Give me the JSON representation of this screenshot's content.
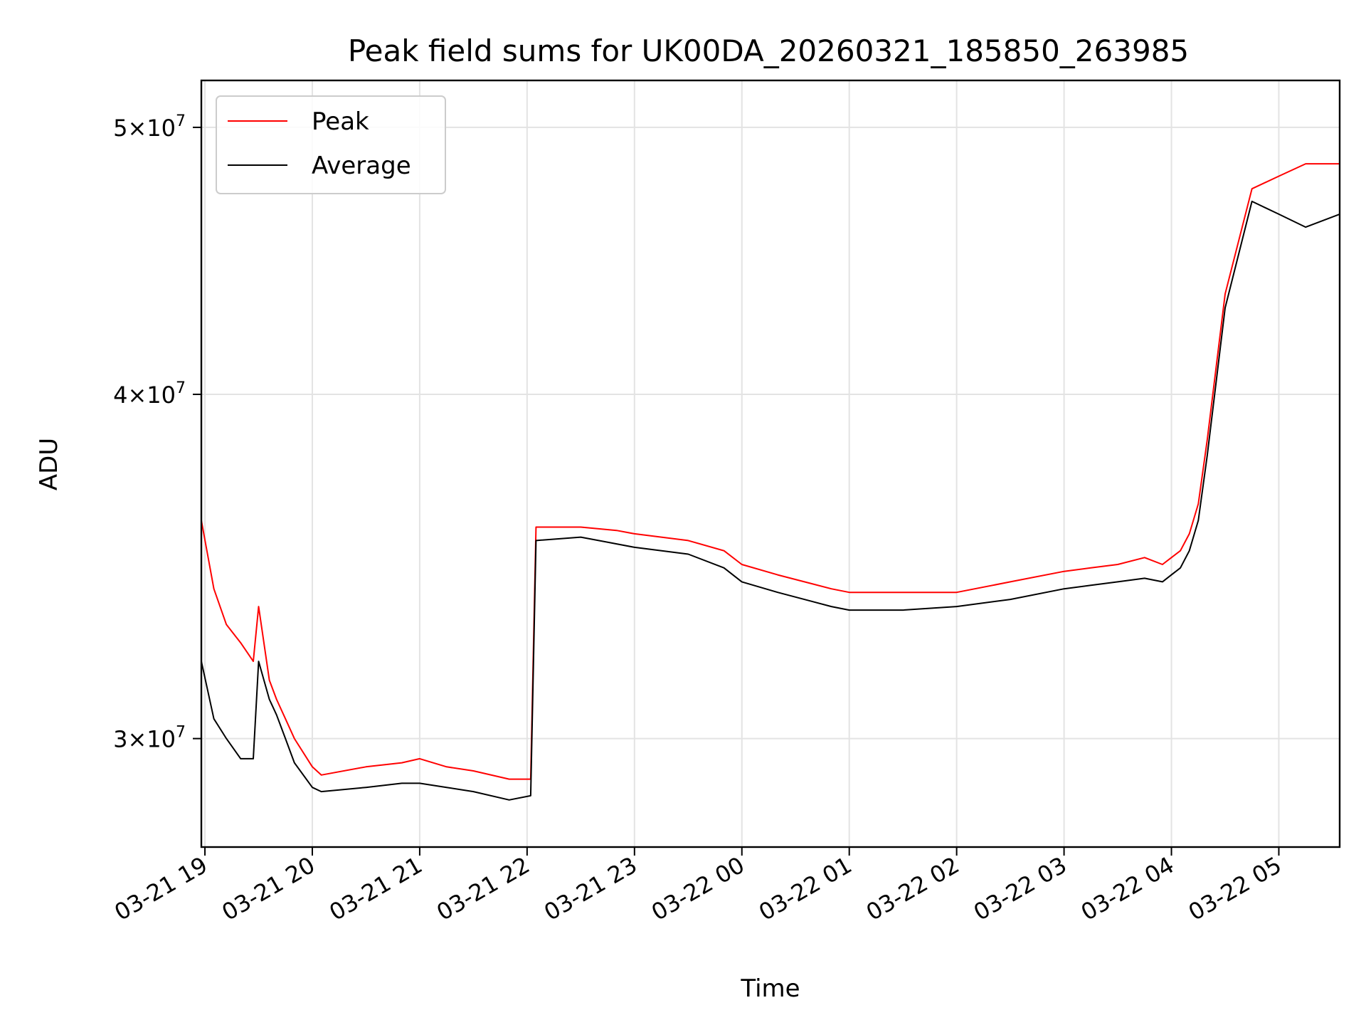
{
  "chart_data": {
    "type": "line",
    "title": "Peak field sums for UK00DA_20260321_185850_263985",
    "xlabel": "Time",
    "ylabel": "ADU",
    "y_scale": "log",
    "ylim": [
      27400000,
      52000000
    ],
    "xlim": [
      "2026-03-21 18:58",
      "2026-03-22 05:34"
    ],
    "x_ticks": [
      {
        "label": "03-21 19",
        "value": "2026-03-21 19:00"
      },
      {
        "label": "03-21 20",
        "value": "2026-03-21 20:00"
      },
      {
        "label": "03-21 21",
        "value": "2026-03-21 21:00"
      },
      {
        "label": "03-21 22",
        "value": "2026-03-21 22:00"
      },
      {
        "label": "03-21 23",
        "value": "2026-03-21 23:00"
      },
      {
        "label": "03-22 00",
        "value": "2026-03-22 00:00"
      },
      {
        "label": "03-22 01",
        "value": "2026-03-22 01:00"
      },
      {
        "label": "03-22 02",
        "value": "2026-03-22 02:00"
      },
      {
        "label": "03-22 03",
        "value": "2026-03-22 03:00"
      },
      {
        "label": "03-22 04",
        "value": "2026-03-22 04:00"
      },
      {
        "label": "03-22 05",
        "value": "2026-03-22 05:00"
      }
    ],
    "y_ticks": [
      {
        "mantissa": "3",
        "exp": "7",
        "value": 30000000
      },
      {
        "mantissa": "4",
        "exp": "7",
        "value": 40000000
      },
      {
        "mantissa": "5",
        "exp": "7",
        "value": 50000000
      }
    ],
    "grid": true,
    "legend_position": "upper-left",
    "series": [
      {
        "name": "Peak",
        "color": "#ff0000",
        "x": [
          "2026-03-21 18:58",
          "2026-03-21 19:05",
          "2026-03-21 19:12",
          "2026-03-21 19:20",
          "2026-03-21 19:27",
          "2026-03-21 19:30",
          "2026-03-21 19:36",
          "2026-03-21 19:40",
          "2026-03-21 19:45",
          "2026-03-21 19:50",
          "2026-03-21 20:00",
          "2026-03-21 20:05",
          "2026-03-21 20:30",
          "2026-03-21 20:50",
          "2026-03-21 21:00",
          "2026-03-21 21:15",
          "2026-03-21 21:30",
          "2026-03-21 21:50",
          "2026-03-21 22:02",
          "2026-03-21 22:05",
          "2026-03-21 22:30",
          "2026-03-21 22:50",
          "2026-03-21 23:00",
          "2026-03-21 23:30",
          "2026-03-21 23:50",
          "2026-03-22 00:00",
          "2026-03-22 00:20",
          "2026-03-22 00:50",
          "2026-03-22 01:00",
          "2026-03-22 01:30",
          "2026-03-22 02:00",
          "2026-03-22 02:30",
          "2026-03-22 03:00",
          "2026-03-22 03:15",
          "2026-03-22 03:30",
          "2026-03-22 03:45",
          "2026-03-22 03:55",
          "2026-03-22 04:00",
          "2026-03-22 04:05",
          "2026-03-22 04:10",
          "2026-03-22 04:15",
          "2026-03-22 04:20",
          "2026-03-22 04:30",
          "2026-03-22 04:45",
          "2026-03-22 05:00",
          "2026-03-22 05:15",
          "2026-03-22 05:34"
        ],
        "y": [
          36000000,
          34000000,
          33000000,
          32500000,
          32000000,
          33500000,
          31500000,
          31000000,
          30500000,
          30000000,
          29300000,
          29100000,
          29300000,
          29400000,
          29500000,
          29300000,
          29200000,
          29000000,
          29000000,
          35800000,
          35800000,
          35700000,
          35600000,
          35400000,
          35100000,
          34700000,
          34400000,
          34000000,
          33900000,
          33900000,
          33900000,
          34200000,
          34500000,
          34600000,
          34700000,
          34900000,
          34700000,
          34900000,
          35100000,
          35600000,
          36500000,
          38500000,
          43500000,
          47500000,
          48000000,
          48500000,
          48500000
        ]
      },
      {
        "name": "Average",
        "color": "#000000",
        "x": [
          "2026-03-21 18:58",
          "2026-03-21 19:05",
          "2026-03-21 19:12",
          "2026-03-21 19:20",
          "2026-03-21 19:27",
          "2026-03-21 19:30",
          "2026-03-21 19:36",
          "2026-03-21 19:40",
          "2026-03-21 19:45",
          "2026-03-21 19:50",
          "2026-03-21 20:00",
          "2026-03-21 20:05",
          "2026-03-21 20:30",
          "2026-03-21 20:50",
          "2026-03-21 21:00",
          "2026-03-21 21:15",
          "2026-03-21 21:30",
          "2026-03-21 21:50",
          "2026-03-21 22:02",
          "2026-03-21 22:05",
          "2026-03-21 22:30",
          "2026-03-21 22:50",
          "2026-03-21 23:00",
          "2026-03-21 23:30",
          "2026-03-21 23:50",
          "2026-03-22 00:00",
          "2026-03-22 00:20",
          "2026-03-22 00:50",
          "2026-03-22 01:00",
          "2026-03-22 01:30",
          "2026-03-22 02:00",
          "2026-03-22 02:30",
          "2026-03-22 03:00",
          "2026-03-22 03:15",
          "2026-03-22 03:30",
          "2026-03-22 03:45",
          "2026-03-22 03:55",
          "2026-03-22 04:00",
          "2026-03-22 04:05",
          "2026-03-22 04:10",
          "2026-03-22 04:15",
          "2026-03-22 04:20",
          "2026-03-22 04:30",
          "2026-03-22 04:45",
          "2026-03-22 05:00",
          "2026-03-22 05:15",
          "2026-03-22 05:34"
        ],
        "y": [
          32000000,
          30500000,
          30000000,
          29500000,
          29500000,
          32000000,
          31000000,
          30600000,
          30000000,
          29400000,
          28800000,
          28700000,
          28800000,
          28900000,
          28900000,
          28800000,
          28700000,
          28500000,
          28600000,
          35400000,
          35500000,
          35300000,
          35200000,
          35000000,
          34600000,
          34200000,
          33900000,
          33500000,
          33400000,
          33400000,
          33500000,
          33700000,
          34000000,
          34100000,
          34200000,
          34300000,
          34200000,
          34400000,
          34600000,
          35100000,
          36000000,
          38000000,
          43000000,
          47000000,
          46500000,
          46000000,
          46500000
        ]
      }
    ]
  }
}
